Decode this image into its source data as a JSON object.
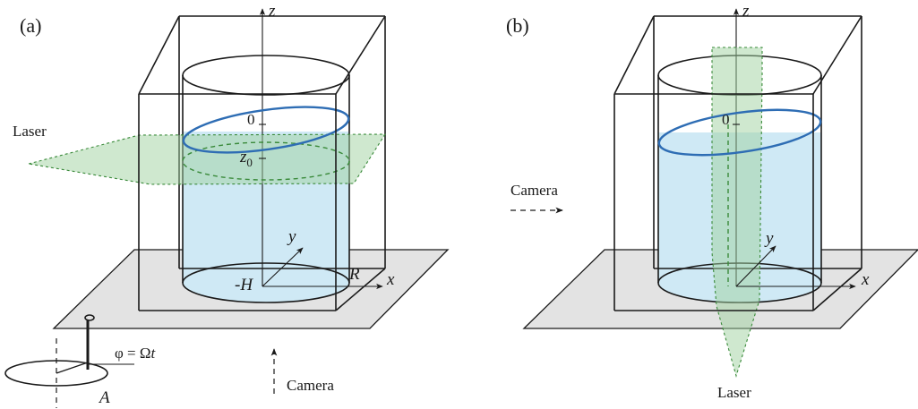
{
  "colors": {
    "water": "#cfe9f5",
    "water_surface": "#2e6db4",
    "laser_fill": "#9fd19f",
    "laser_edge": "#3a8a3a",
    "table": "#e3e3e3",
    "line": "#1a1a1a"
  },
  "panel_a": {
    "label": "(a)",
    "axis_z": "z",
    "axis_y": "y",
    "axis_x": "x",
    "tick_zero": "0",
    "tick_z0_base": "z",
    "tick_z0_sub": "0",
    "tick_minus_h": "-H",
    "radius_label": "R",
    "laser_label": "Laser",
    "camera_label": "Camera",
    "phase_lhs": "φ = Ω",
    "phase_t": "t",
    "amplitude_label": "A"
  },
  "panel_b": {
    "label": "(b)",
    "axis_z": "z",
    "axis_y": "y",
    "axis_x": "x",
    "tick_zero": "0",
    "camera_label": "Camera",
    "laser_label": "Laser"
  },
  "icons": {
    "camera_arrow_up": "dashed-arrow-up-icon",
    "camera_arrow_right": "dashed-arrow-right-icon"
  }
}
